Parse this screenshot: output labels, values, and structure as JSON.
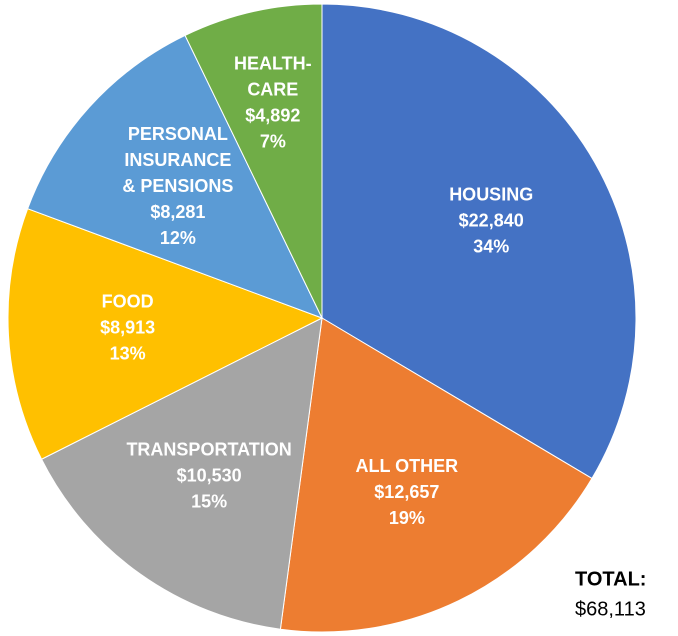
{
  "chart_data": {
    "type": "pie",
    "categories": [
      [
        "HOUSING"
      ],
      [
        "ALL OTHER"
      ],
      [
        "TRANSPORTATION"
      ],
      [
        "FOOD"
      ],
      [
        "PERSONAL",
        "INSURANCE",
        "& PENSIONS"
      ],
      [
        "HEALTH-",
        "CARE"
      ]
    ],
    "values": [
      22840,
      12657,
      10530,
      8913,
      8281,
      4892
    ],
    "value_labels": [
      "$22,840",
      "$12,657",
      "$10,530",
      "$8,913",
      "$8,281",
      "$4,892"
    ],
    "percent_labels": [
      "34%",
      "19%",
      "15%",
      "13%",
      "12%",
      "7%"
    ],
    "colors": [
      "#4472c4",
      "#ed7d31",
      "#a5a5a5",
      "#ffc000",
      "#5b9bd5",
      "#70ad47"
    ],
    "total_title": "TOTAL:",
    "total_label": "$68,113"
  }
}
